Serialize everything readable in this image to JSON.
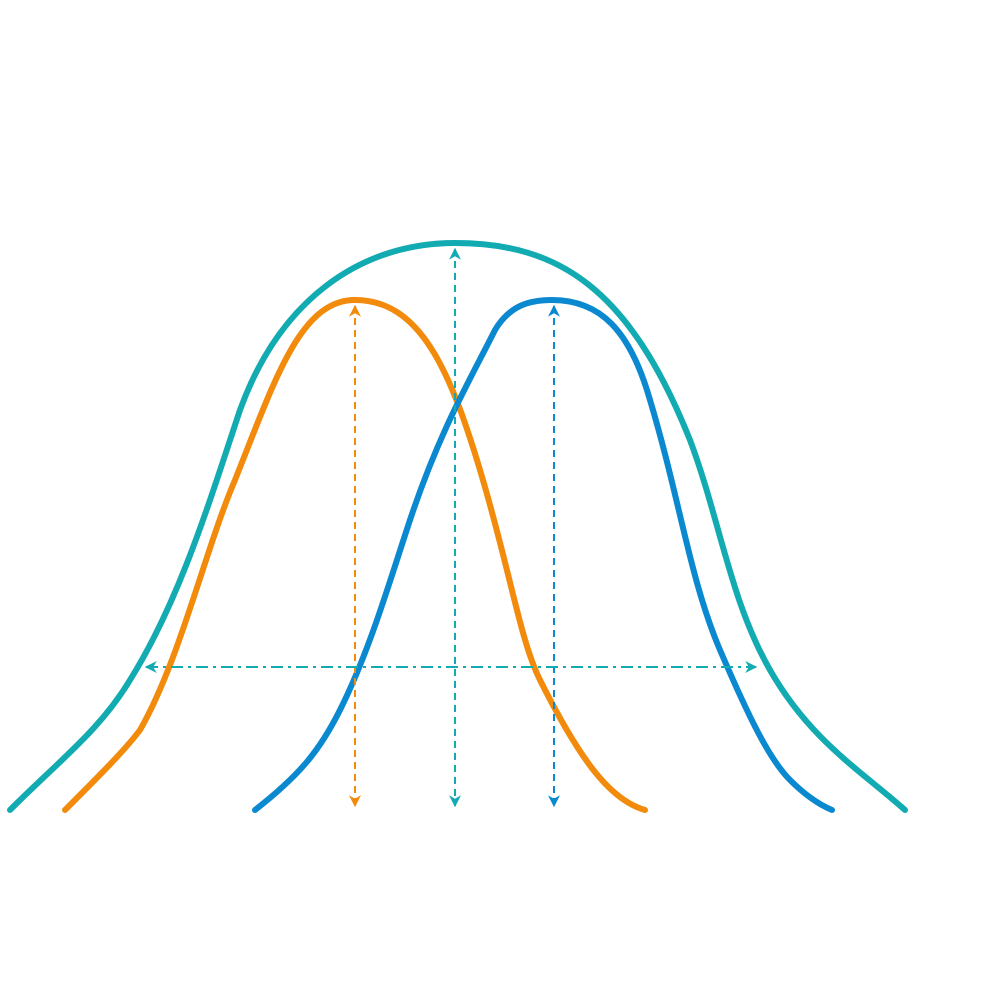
{
  "diagram": {
    "colors": {
      "combined_curve": "#13abb2",
      "left_curve": "#f28a0c",
      "right_curve": "#0a88d0",
      "background": "#ffffff"
    },
    "elements": [
      "combined-distribution-curve",
      "left-distribution-curve",
      "right-distribution-curve",
      "left-peak-height-arrow",
      "combined-peak-height-arrow",
      "right-peak-height-arrow",
      "width-double-arrow"
    ]
  }
}
